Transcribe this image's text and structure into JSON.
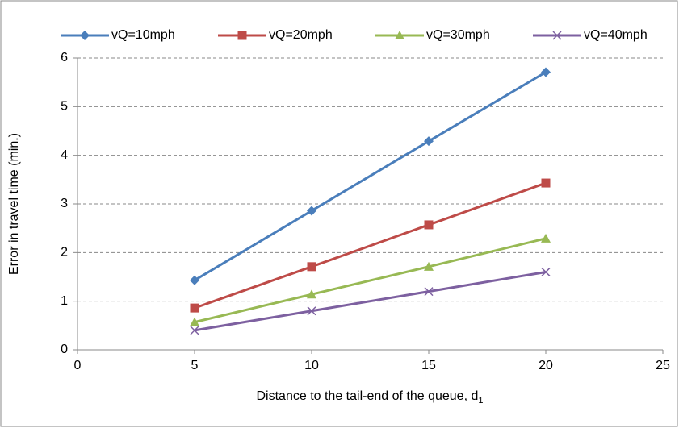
{
  "chart_data": {
    "type": "line",
    "x_label": "Distance to the tail-end of the queue, d",
    "x_label_subscript": "1",
    "y_label": "Error in travel time (min.)",
    "x": [
      5,
      10,
      15,
      20
    ],
    "series": [
      {
        "name": "vQ=10mph",
        "color": "#4a7ebb",
        "marker": "diamond",
        "values": [
          1.43,
          2.86,
          4.29,
          5.71
        ]
      },
      {
        "name": "vQ=20mph",
        "color": "#be4b48",
        "marker": "square",
        "values": [
          0.86,
          1.71,
          2.57,
          3.43
        ]
      },
      {
        "name": "vQ=30mph",
        "color": "#98b954",
        "marker": "triangle",
        "values": [
          0.57,
          1.14,
          1.71,
          2.29
        ]
      },
      {
        "name": "vQ=40mph",
        "color": "#7d60a0",
        "marker": "x",
        "values": [
          0.4,
          0.8,
          1.2,
          1.6
        ]
      }
    ],
    "xlim": [
      0,
      25
    ],
    "xticks": [
      0,
      5,
      10,
      15,
      20,
      25
    ],
    "ylim": [
      0,
      6
    ],
    "yticks": [
      0,
      1,
      2,
      3,
      4,
      5,
      6
    ],
    "grid": true,
    "legend": "top"
  }
}
